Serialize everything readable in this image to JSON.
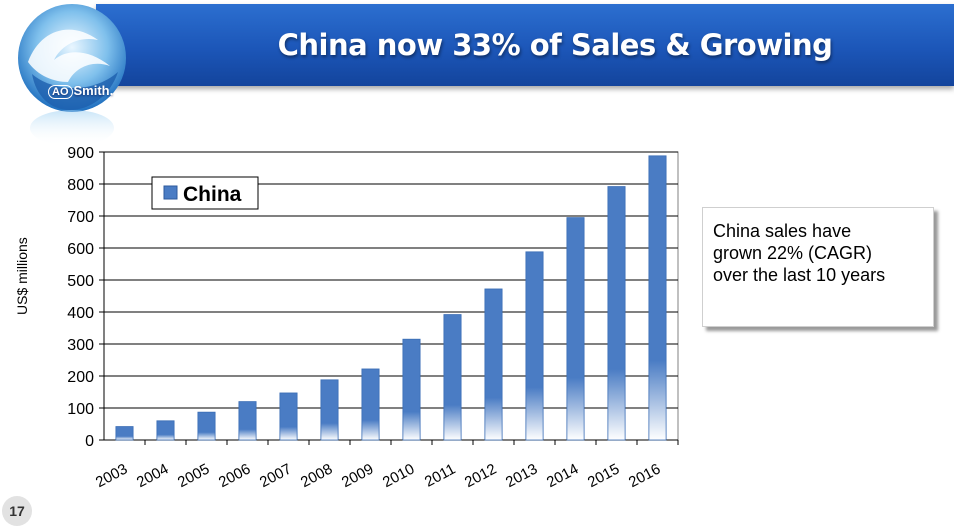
{
  "slide": {
    "title": "China now 33% of Sales & Growing",
    "page_number": "17",
    "brand_icon": "ao-smith-water-splash-logo",
    "note": "China  sales have\ngrown 22% (CAGR)\nover the last 10 years"
  },
  "logo": {
    "ao": "AO",
    "name": "Smith."
  },
  "chart_data": {
    "type": "bar",
    "title": "",
    "xlabel": "",
    "ylabel": "US$ millions",
    "categories": [
      "2003",
      "2004",
      "2005",
      "2006",
      "2007",
      "2008",
      "2009",
      "2010",
      "2011",
      "2012",
      "2013",
      "2014",
      "2015",
      "2016"
    ],
    "series": [
      {
        "name": "China",
        "values": [
          42,
          60,
          87,
          120,
          147,
          188,
          222,
          315,
          392,
          472,
          588,
          695,
          792,
          888
        ],
        "color": "#4a7cc4"
      }
    ],
    "ylim": [
      0,
      900
    ],
    "yticks": [
      0,
      100,
      200,
      300,
      400,
      500,
      600,
      700,
      800,
      900
    ],
    "grid": true,
    "legend_position": "top-left"
  }
}
